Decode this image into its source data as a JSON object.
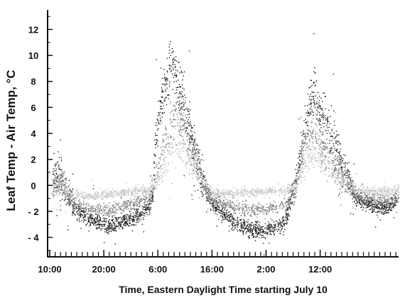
{
  "chart_data": {
    "type": "scatter",
    "title": "",
    "xlabel": "Time, Eastern Daylight Time starting July 10",
    "ylabel": "Leaf Temp - Air Temp, °C",
    "x_unit": "hours since 10:00 July 10",
    "xlim": [
      0,
      64.5
    ],
    "ylim": [
      -5.5,
      13.5
    ],
    "x_ticks": [
      {
        "label": "10:00",
        "x": 0
      },
      {
        "label": "20:00",
        "x": 10
      },
      {
        "label": "6:00",
        "x": 20
      },
      {
        "label": "16:00",
        "x": 30
      },
      {
        "label": "2:00",
        "x": 40
      },
      {
        "label": "12:00",
        "x": 50
      }
    ],
    "y_ticks": [
      {
        "label": "12",
        "y": 12
      },
      {
        "label": "10",
        "y": 10
      },
      {
        "label": "8",
        "y": 8
      },
      {
        "label": "6",
        "y": 6
      },
      {
        "label": "4",
        "y": 4
      },
      {
        "label": "2",
        "y": 2
      },
      {
        "label": "0",
        "y": 0
      },
      {
        "label": "- 2",
        "y": -2
      },
      {
        "label": "- 4",
        "y": -4
      }
    ],
    "grid": false,
    "legend": "none",
    "series": [
      {
        "color": "#1e1e1e",
        "x": [
          0.5,
          1.5,
          3,
          5,
          7,
          9,
          11,
          13,
          15,
          17,
          19,
          19.5,
          20.5,
          21.5,
          22.5,
          23.5,
          24.5,
          25.5,
          26.5,
          28,
          29.5,
          31,
          33,
          35,
          37,
          39,
          41,
          43,
          44,
          45.5,
          46.5,
          47.5,
          48.5,
          49.5,
          50.5,
          51.5,
          52.5,
          53.5,
          54.5,
          55.5,
          56.5,
          58,
          60,
          62,
          64
        ],
        "y": [
          0.5,
          1.0,
          -0.5,
          -2.0,
          -2.5,
          -2.8,
          -3.0,
          -2.8,
          -2.5,
          -2.2,
          -1.0,
          3.5,
          6.5,
          8.0,
          9.5,
          8.0,
          6.5,
          5.0,
          3.0,
          0.5,
          -1.0,
          -1.8,
          -2.5,
          -3.0,
          -3.3,
          -3.5,
          -3.3,
          -3.0,
          -2.0,
          0.5,
          2.5,
          5.0,
          7.5,
          6.5,
          5.0,
          4.0,
          3.0,
          2.0,
          1.0,
          0.0,
          -0.8,
          -1.2,
          -1.5,
          -1.7,
          -1.2
        ],
        "spread": [
          1.5,
          2.0,
          1.3,
          0.8,
          0.8,
          0.8,
          0.8,
          0.8,
          0.8,
          0.8,
          1.0,
          2.0,
          2.2,
          2.5,
          2.2,
          2.5,
          2.5,
          2.5,
          2.3,
          1.5,
          0.8,
          0.8,
          0.8,
          0.8,
          0.8,
          0.8,
          0.8,
          0.8,
          1.0,
          1.5,
          2.0,
          2.3,
          2.3,
          2.5,
          2.5,
          2.5,
          2.5,
          2.0,
          1.8,
          1.2,
          0.8,
          0.8,
          0.7,
          0.7,
          0.7
        ]
      },
      {
        "color": "#8a8a8a",
        "x": [
          0.5,
          2,
          3.5,
          5,
          7,
          9,
          11,
          13,
          15,
          17,
          19,
          20.5,
          21.5,
          22.5,
          23.5,
          24.5,
          25.5,
          26.5,
          27.5,
          28.5,
          30,
          32,
          34,
          36,
          38,
          40,
          42,
          44,
          45.5,
          46.5,
          47.5,
          48.5,
          49.5,
          50.5,
          51.5,
          52.5,
          53.5,
          54.5,
          55.5,
          57,
          59,
          61,
          63,
          64.5
        ],
        "y": [
          0.0,
          0.5,
          -1.0,
          -1.5,
          -1.8,
          -1.8,
          -1.8,
          -1.6,
          -1.4,
          -1.1,
          -0.5,
          2.5,
          4.0,
          5.0,
          5.5,
          5.0,
          3.5,
          2.5,
          1.0,
          0.0,
          -1.0,
          -1.4,
          -1.6,
          -1.8,
          -1.8,
          -1.8,
          -1.6,
          -1.3,
          0.0,
          2.0,
          3.5,
          4.5,
          4.0,
          3.0,
          2.0,
          1.5,
          1.0,
          0.5,
          -0.2,
          -0.8,
          -1.0,
          -1.0,
          -1.2,
          -1.0
        ],
        "spread": [
          1.0,
          1.5,
          1.0,
          0.6,
          0.6,
          0.6,
          0.6,
          0.6,
          0.6,
          0.6,
          0.7,
          1.8,
          2.0,
          2.0,
          2.0,
          2.2,
          2.0,
          2.0,
          1.8,
          1.2,
          0.6,
          0.6,
          0.6,
          0.6,
          0.6,
          0.6,
          0.6,
          0.6,
          1.0,
          1.8,
          2.0,
          2.0,
          2.0,
          2.0,
          2.0,
          2.0,
          1.8,
          1.2,
          0.8,
          0.6,
          0.6,
          0.6,
          0.6,
          0.6
        ]
      },
      {
        "color": "#c9c9c9",
        "x": [
          0,
          2,
          4,
          6,
          8,
          10,
          12,
          14,
          16,
          18,
          19.5,
          20.5,
          21.5,
          22.5,
          23.5,
          24.5,
          25.5,
          26.5,
          27.5,
          28.5,
          30,
          32,
          34,
          36,
          38,
          40,
          42,
          44,
          45.5,
          46.5,
          47.5,
          48.5,
          49.5,
          50.5,
          51.5,
          52.5,
          53.5,
          55,
          57,
          59,
          61,
          63,
          64.5
        ],
        "y": [
          -0.5,
          0.0,
          -0.6,
          -0.8,
          -0.8,
          -0.6,
          -0.6,
          -0.5,
          -0.4,
          -0.3,
          0.0,
          1.0,
          2.0,
          3.0,
          3.5,
          3.0,
          2.0,
          1.5,
          1.0,
          0.0,
          -0.5,
          -0.6,
          -0.6,
          -0.5,
          -0.5,
          -0.4,
          -0.4,
          -0.3,
          0.0,
          1.0,
          2.0,
          2.5,
          2.5,
          2.0,
          1.5,
          1.0,
          0.5,
          0.0,
          -0.3,
          -0.4,
          -0.4,
          -0.4,
          -0.2
        ],
        "spread": [
          0.8,
          1.0,
          0.6,
          0.4,
          0.4,
          0.4,
          0.4,
          0.4,
          0.4,
          0.4,
          0.6,
          1.3,
          1.5,
          1.5,
          1.8,
          1.8,
          1.5,
          1.5,
          1.3,
          1.0,
          0.4,
          0.4,
          0.4,
          0.4,
          0.4,
          0.4,
          0.4,
          0.4,
          0.6,
          1.3,
          1.5,
          1.5,
          1.5,
          1.5,
          1.3,
          1.2,
          1.0,
          0.8,
          0.4,
          0.4,
          0.4,
          0.4,
          0.4
        ]
      }
    ]
  }
}
